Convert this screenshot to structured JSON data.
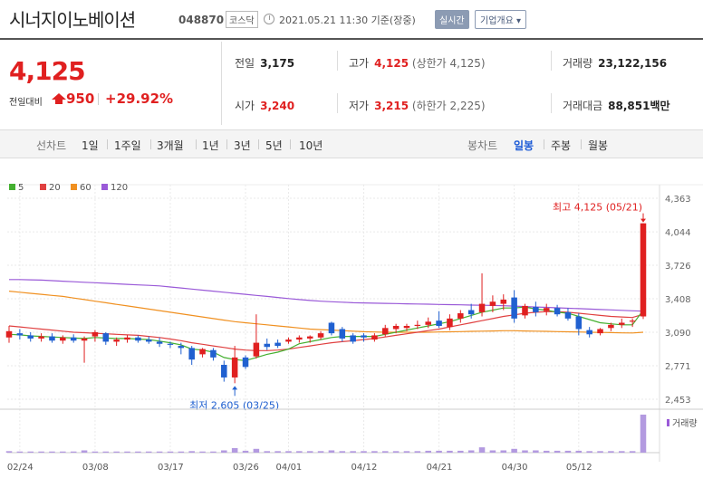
{
  "header": {
    "name": "시너지이노베이션",
    "code": "048870",
    "market": "코스닥",
    "timestamp": "2021.05.21 11:30 기준(장중)",
    "realtime_label": "실시간",
    "company_label": "기업개요 ▾"
  },
  "price": {
    "current": "4,125",
    "prev_label": "전일대비",
    "diff": "950",
    "rate": "+29.92%",
    "up_color": "#e02020"
  },
  "info": {
    "prev_close_label": "전일",
    "prev_close": "3,175",
    "high_label": "고가",
    "high": "4,125",
    "high_sub": "(상한가 4,125)",
    "volume_label": "거래량",
    "volume": "23,122,156",
    "open_label": "시가",
    "open": "3,240",
    "low_label": "저가",
    "low": "3,215",
    "low_sub": "(하한가 2,225)",
    "amount_label": "거래대금",
    "amount": "88,851",
    "amount_unit": "백만"
  },
  "periods": {
    "line_label": "선차트",
    "line_items": [
      "1일",
      "1주일",
      "3개월",
      "1년",
      "3년",
      "5년",
      "10년"
    ],
    "candle_label": "봉차트",
    "candle_items": [
      "일봉",
      "주봉",
      "월봉"
    ],
    "active_candle": "일봉"
  },
  "chart_data": {
    "type": "candlestick",
    "legend": [
      {
        "name": "5",
        "color": "#44b030"
      },
      {
        "name": "20",
        "color": "#e04040"
      },
      {
        "name": "60",
        "color": "#f09020"
      },
      {
        "name": "120",
        "color": "#9a5ad8"
      }
    ],
    "y_ticks": [
      4363,
      4044,
      3726,
      3408,
      3090,
      2771,
      2453
    ],
    "y_tick_labels": [
      "4,363",
      "4,044",
      "3,726",
      "3,408",
      "3,090",
      "2,771",
      "2,453"
    ],
    "ylim": [
      2453,
      4363
    ],
    "x_labels": [
      {
        "label": "02/24",
        "index": 1
      },
      {
        "label": "03/08",
        "index": 8
      },
      {
        "label": "03/17",
        "index": 15
      },
      {
        "label": "03/26",
        "index": 22
      },
      {
        "label": "04/01",
        "index": 26
      },
      {
        "label": "04/12",
        "index": 33
      },
      {
        "label": "04/21",
        "index": 40
      },
      {
        "label": "04/30",
        "index": 47
      },
      {
        "label": "05/12",
        "index": 53
      }
    ],
    "max_annotation": "최고 4,125 (05/21)",
    "min_annotation": "최저 2,605 (03/25)",
    "volume_label": "거래량",
    "up_color": "#e02020",
    "down_color": "#2060d0",
    "candles": [
      {
        "o": 3040,
        "h": 3150,
        "l": 2990,
        "c": 3100
      },
      {
        "o": 3080,
        "h": 3120,
        "l": 3020,
        "c": 3060
      },
      {
        "o": 3060,
        "h": 3090,
        "l": 3000,
        "c": 3030
      },
      {
        "o": 3030,
        "h": 3080,
        "l": 3000,
        "c": 3050
      },
      {
        "o": 3050,
        "h": 3080,
        "l": 2990,
        "c": 3010
      },
      {
        "o": 3010,
        "h": 3060,
        "l": 2980,
        "c": 3040
      },
      {
        "o": 3040,
        "h": 3070,
        "l": 2990,
        "c": 3010
      },
      {
        "o": 3010,
        "h": 3050,
        "l": 2800,
        "c": 3030
      },
      {
        "o": 3050,
        "h": 3110,
        "l": 3000,
        "c": 3090
      },
      {
        "o": 3080,
        "h": 3090,
        "l": 2970,
        "c": 3000
      },
      {
        "o": 3000,
        "h": 3040,
        "l": 2960,
        "c": 3020
      },
      {
        "o": 3020,
        "h": 3060,
        "l": 2990,
        "c": 3040
      },
      {
        "o": 3040,
        "h": 3060,
        "l": 2990,
        "c": 3010
      },
      {
        "o": 3020,
        "h": 3050,
        "l": 2980,
        "c": 3000
      },
      {
        "o": 3000,
        "h": 3040,
        "l": 2950,
        "c": 2980
      },
      {
        "o": 2980,
        "h": 3000,
        "l": 2940,
        "c": 2970
      },
      {
        "o": 2960,
        "h": 2990,
        "l": 2880,
        "c": 2940
      },
      {
        "o": 2940,
        "h": 2960,
        "l": 2780,
        "c": 2830
      },
      {
        "o": 2880,
        "h": 2940,
        "l": 2850,
        "c": 2930
      },
      {
        "o": 2920,
        "h": 2940,
        "l": 2820,
        "c": 2850
      },
      {
        "o": 2780,
        "h": 2820,
        "l": 2620,
        "c": 2660
      },
      {
        "o": 2660,
        "h": 2960,
        "l": 2605,
        "c": 2850
      },
      {
        "o": 2850,
        "h": 2870,
        "l": 2740,
        "c": 2760
      },
      {
        "o": 2860,
        "h": 3260,
        "l": 2840,
        "c": 2990
      },
      {
        "o": 2980,
        "h": 3030,
        "l": 2920,
        "c": 2950
      },
      {
        "o": 2990,
        "h": 3020,
        "l": 2940,
        "c": 2960
      },
      {
        "o": 3000,
        "h": 3040,
        "l": 2980,
        "c": 3020
      },
      {
        "o": 3020,
        "h": 3060,
        "l": 2990,
        "c": 3040
      },
      {
        "o": 3030,
        "h": 3060,
        "l": 2990,
        "c": 3050
      },
      {
        "o": 3040,
        "h": 3100,
        "l": 3020,
        "c": 3080
      },
      {
        "o": 3180,
        "h": 3190,
        "l": 3060,
        "c": 3080
      },
      {
        "o": 3120,
        "h": 3140,
        "l": 3000,
        "c": 3030
      },
      {
        "o": 3060,
        "h": 3080,
        "l": 2980,
        "c": 3000
      },
      {
        "o": 3060,
        "h": 3080,
        "l": 3000,
        "c": 3040
      },
      {
        "o": 3020,
        "h": 3080,
        "l": 3000,
        "c": 3060
      },
      {
        "o": 3070,
        "h": 3160,
        "l": 3050,
        "c": 3130
      },
      {
        "o": 3120,
        "h": 3170,
        "l": 3080,
        "c": 3150
      },
      {
        "o": 3130,
        "h": 3170,
        "l": 3100,
        "c": 3150
      },
      {
        "o": 3150,
        "h": 3200,
        "l": 3120,
        "c": 3160
      },
      {
        "o": 3160,
        "h": 3230,
        "l": 3130,
        "c": 3190
      },
      {
        "o": 3200,
        "h": 3290,
        "l": 3130,
        "c": 3150
      },
      {
        "o": 3140,
        "h": 3260,
        "l": 3110,
        "c": 3220
      },
      {
        "o": 3220,
        "h": 3300,
        "l": 3180,
        "c": 3270
      },
      {
        "o": 3300,
        "h": 3360,
        "l": 3220,
        "c": 3260
      },
      {
        "o": 3280,
        "h": 3650,
        "l": 3240,
        "c": 3360
      },
      {
        "o": 3340,
        "h": 3440,
        "l": 3280,
        "c": 3380
      },
      {
        "o": 3360,
        "h": 3450,
        "l": 3300,
        "c": 3400
      },
      {
        "o": 3420,
        "h": 3490,
        "l": 3180,
        "c": 3220
      },
      {
        "o": 3250,
        "h": 3360,
        "l": 3220,
        "c": 3340
      },
      {
        "o": 3330,
        "h": 3380,
        "l": 3240,
        "c": 3280
      },
      {
        "o": 3290,
        "h": 3360,
        "l": 3250,
        "c": 3320
      },
      {
        "o": 3320,
        "h": 3350,
        "l": 3240,
        "c": 3260
      },
      {
        "o": 3280,
        "h": 3320,
        "l": 3200,
        "c": 3220
      },
      {
        "o": 3240,
        "h": 3270,
        "l": 3060,
        "c": 3120
      },
      {
        "o": 3110,
        "h": 3140,
        "l": 3040,
        "c": 3070
      },
      {
        "o": 3080,
        "h": 3130,
        "l": 3060,
        "c": 3120
      },
      {
        "o": 3130,
        "h": 3180,
        "l": 3100,
        "c": 3160
      },
      {
        "o": 3160,
        "h": 3220,
        "l": 3130,
        "c": 3180
      },
      {
        "o": 3190,
        "h": 3220,
        "l": 3140,
        "c": 3200
      },
      {
        "o": 3240,
        "h": 4125,
        "l": 3215,
        "c": 4125
      }
    ],
    "ma5": [
      3070,
      3065,
      3055,
      3050,
      3045,
      3040,
      3035,
      3030,
      3040,
      3035,
      3030,
      3030,
      3025,
      3020,
      3005,
      2990,
      2970,
      2930,
      2920,
      2900,
      2850,
      2830,
      2820,
      2850,
      2880,
      2900,
      2930,
      2980,
      3000,
      3020,
      3040,
      3050,
      3050,
      3050,
      3050,
      3070,
      3090,
      3110,
      3130,
      3150,
      3170,
      3190,
      3220,
      3250,
      3280,
      3300,
      3320,
      3320,
      3330,
      3310,
      3300,
      3280,
      3270,
      3240,
      3210,
      3180,
      3170,
      3160,
      3160,
      3300
    ],
    "ma20": [
      3150,
      3140,
      3130,
      3120,
      3110,
      3100,
      3090,
      3085,
      3080,
      3075,
      3070,
      3065,
      3060,
      3050,
      3040,
      3025,
      3010,
      2990,
      2975,
      2960,
      2945,
      2930,
      2920,
      2915,
      2915,
      2920,
      2930,
      2945,
      2960,
      2975,
      2990,
      3000,
      3010,
      3020,
      3030,
      3045,
      3060,
      3075,
      3090,
      3105,
      3120,
      3140,
      3160,
      3180,
      3200,
      3220,
      3240,
      3255,
      3270,
      3280,
      3285,
      3285,
      3280,
      3270,
      3260,
      3250,
      3240,
      3235,
      3230,
      3260
    ],
    "ma60": [
      3480,
      3470,
      3460,
      3450,
      3440,
      3430,
      3415,
      3400,
      3385,
      3370,
      3355,
      3340,
      3325,
      3310,
      3295,
      3280,
      3265,
      3250,
      3235,
      3220,
      3205,
      3190,
      3180,
      3170,
      3160,
      3150,
      3140,
      3130,
      3120,
      3115,
      3110,
      3105,
      3100,
      3095,
      3092,
      3090,
      3090,
      3090,
      3090,
      3090,
      3092,
      3094,
      3096,
      3098,
      3100,
      3102,
      3104,
      3104,
      3102,
      3100,
      3098,
      3096,
      3094,
      3092,
      3090,
      3088,
      3086,
      3084,
      3083,
      3090
    ],
    "ma120": [
      3590,
      3590,
      3588,
      3585,
      3580,
      3575,
      3570,
      3565,
      3560,
      3555,
      3550,
      3545,
      3540,
      3535,
      3530,
      3520,
      3510,
      3500,
      3490,
      3480,
      3470,
      3460,
      3450,
      3440,
      3430,
      3420,
      3410,
      3400,
      3392,
      3385,
      3380,
      3375,
      3370,
      3368,
      3366,
      3364,
      3362,
      3360,
      3358,
      3356,
      3354,
      3352,
      3350,
      3348,
      3346,
      3344,
      3342,
      3338,
      3334,
      3330,
      3326,
      3322,
      3318,
      3314,
      3310,
      3306,
      3302,
      3298,
      3294,
      3290
    ],
    "volume": [
      4,
      3,
      3,
      3,
      3,
      3,
      3,
      6,
      3,
      3,
      3,
      3,
      3,
      3,
      3,
      3,
      3,
      4,
      3,
      3,
      6,
      12,
      5,
      10,
      4,
      4,
      4,
      4,
      4,
      4,
      6,
      4,
      4,
      4,
      4,
      4,
      4,
      4,
      4,
      5,
      5,
      5,
      5,
      6,
      14,
      6,
      6,
      10,
      6,
      6,
      5,
      5,
      5,
      5,
      4,
      4,
      4,
      4,
      4,
      100
    ]
  }
}
